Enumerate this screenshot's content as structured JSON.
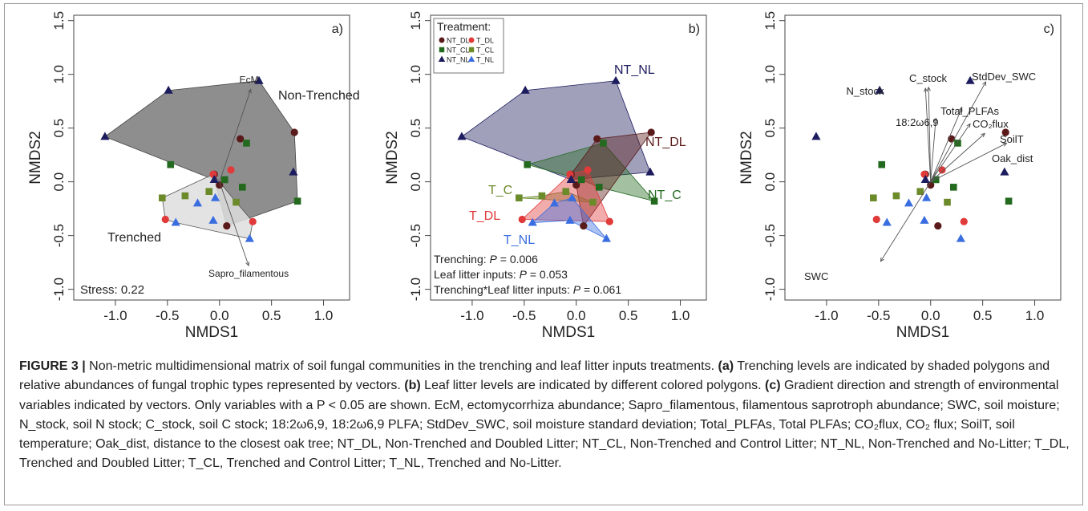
{
  "figure": {
    "caption_label": "FIGURE 3 |",
    "caption_parts": [
      {
        "b": false,
        "t": " Non-metric multidimensional matrix of soil fungal communities in the trenching and leaf litter inputs treatments. "
      },
      {
        "b": true,
        "t": "(a)"
      },
      {
        "b": false,
        "t": " Trenching levels are indicated by shaded polygons and relative abundances of fungal trophic types represented by vectors. "
      },
      {
        "b": true,
        "t": "(b)"
      },
      {
        "b": false,
        "t": " Leaf litter levels are indicated by different colored polygons. "
      },
      {
        "b": true,
        "t": "(c)"
      },
      {
        "b": false,
        "t": " Gradient direction and strength of environmental variables indicated by vectors. Only variables with a P < 0.05 are shown. EcM, ectomycorrhiza abundance; Sapro_filamentous, filamentous saprotroph abundance; SWC, soil moisture; N_stock, soil N stock; C_stock, soil C stock; 18:2ω6,9, 18:2ω6,9 PLFA; StdDev_SWC, soil moisture standard deviation; Total_PLFAs, Total PLFAs; CO₂flux, CO₂ flux; SoilT, soil temperature; Oak_dist, distance to the closest oak tree; NT_DL, Non-Trenched and Doubled Litter; NT_CL, Non-Trenched and Control Litter; NT_NL, Non-Trenched and No-Litter; T_DL, Trenched and Doubled Litter; T_CL, Trenched and Control Litter; T_NL, Trenched and No-Litter."
      }
    ]
  },
  "colors": {
    "NT_DL": "#5a1a1a",
    "T_DL": "#e03a3a",
    "NT_CL": "#236a1f",
    "T_CL": "#6b8a2a",
    "NT_NL": "#1c1c5e",
    "T_NL": "#3a6ee0",
    "nontrenched_fill": "#6e6e6e",
    "trenched_fill": "#dedede"
  },
  "chart_data": [
    {
      "panel": "a)",
      "type": "scatter",
      "xlabel": "NMDS1",
      "ylabel": "NMDS2",
      "xlim": [
        -1.4,
        1.25
      ],
      "ylim": [
        -1.1,
        1.55
      ],
      "xticks": [
        "-1.0",
        "-0.5",
        "0.0",
        "0.5",
        "1.0"
      ],
      "yticks": [
        "-1.0",
        "-0.5",
        "0.0",
        "0.5",
        "1.0",
        "1.5"
      ],
      "groups": [
        "NT_DL",
        "T_DL",
        "NT_CL",
        "T_CL",
        "NT_NL",
        "T_NL"
      ],
      "points": [
        {
          "g": "NT_DL",
          "x": 0.2,
          "y": 0.4
        },
        {
          "g": "NT_DL",
          "x": 0.72,
          "y": 0.46
        },
        {
          "g": "NT_DL",
          "x": 0.0,
          "y": -0.03
        },
        {
          "g": "NT_DL",
          "x": -0.05,
          "y": 0.07
        },
        {
          "g": "NT_DL",
          "x": 0.07,
          "y": -0.41
        },
        {
          "g": "T_DL",
          "x": -0.06,
          "y": 0.07
        },
        {
          "g": "T_DL",
          "x": -0.52,
          "y": -0.35
        },
        {
          "g": "T_DL",
          "x": 0.32,
          "y": -0.37
        },
        {
          "g": "T_DL",
          "x": 0.11,
          "y": 0.11
        },
        {
          "g": "NT_CL",
          "x": 0.26,
          "y": 0.36
        },
        {
          "g": "NT_CL",
          "x": 0.75,
          "y": -0.18
        },
        {
          "g": "NT_CL",
          "x": 0.22,
          "y": -0.05
        },
        {
          "g": "NT_CL",
          "x": 0.05,
          "y": 0.02
        },
        {
          "g": "NT_CL",
          "x": -0.47,
          "y": 0.16
        },
        {
          "g": "T_CL",
          "x": -0.55,
          "y": -0.15
        },
        {
          "g": "T_CL",
          "x": -0.33,
          "y": -0.13
        },
        {
          "g": "T_CL",
          "x": -0.1,
          "y": -0.09
        },
        {
          "g": "T_CL",
          "x": 0.16,
          "y": -0.19
        },
        {
          "g": "NT_NL",
          "x": -1.1,
          "y": 0.42
        },
        {
          "g": "NT_NL",
          "x": -0.49,
          "y": 0.85
        },
        {
          "g": "NT_NL",
          "x": 0.38,
          "y": 0.94
        },
        {
          "g": "NT_NL",
          "x": 0.71,
          "y": 0.09
        },
        {
          "g": "NT_NL",
          "x": -0.05,
          "y": 0.02
        },
        {
          "g": "T_NL",
          "x": -0.42,
          "y": -0.38
        },
        {
          "g": "T_NL",
          "x": -0.21,
          "y": -0.2
        },
        {
          "g": "T_NL",
          "x": -0.06,
          "y": -0.36
        },
        {
          "g": "T_NL",
          "x": 0.29,
          "y": -0.53
        },
        {
          "g": "T_NL",
          "x": -0.04,
          "y": -0.15
        }
      ],
      "hulls": [
        {
          "name": "Non-Trenched",
          "points": [
            [
              -1.1,
              0.42
            ],
            [
              -0.49,
              0.85
            ],
            [
              0.38,
              0.94
            ],
            [
              0.72,
              0.46
            ],
            [
              0.75,
              -0.18
            ],
            [
              0.07,
              -0.41
            ],
            [
              -0.05,
              0.02
            ]
          ]
        },
        {
          "name": "Trenched",
          "points": [
            [
              -0.55,
              -0.15
            ],
            [
              -0.06,
              0.07
            ],
            [
              0.16,
              -0.19
            ],
            [
              0.32,
              -0.37
            ],
            [
              0.29,
              -0.53
            ],
            [
              -0.42,
              -0.38
            ],
            [
              -0.52,
              -0.35
            ]
          ]
        }
      ],
      "vectors": [
        {
          "label": "EcM",
          "x": 0.3,
          "y": 0.86
        },
        {
          "label": "Sapro_filamentous",
          "x": 0.28,
          "y": -0.78
        }
      ],
      "annotations": [
        "Non-Trenched",
        "Trenched",
        "Stress: 0.22"
      ]
    },
    {
      "panel": "b)",
      "type": "scatter",
      "xlabel": "NMDS1",
      "ylabel": "NMDS2",
      "xlim": [
        -1.4,
        1.25
      ],
      "ylim": [
        -1.1,
        1.55
      ],
      "xticks": [
        "-1.0",
        "-0.5",
        "0.0",
        "0.5",
        "1.0"
      ],
      "yticks": [
        "-1.0",
        "-0.5",
        "0.0",
        "0.5",
        "1.0",
        "1.5"
      ],
      "legend_title": "Treatment:",
      "legend_position": "top-left",
      "legend": [
        "NT_DL",
        "T_DL",
        "NT_CL",
        "T_CL",
        "NT_NL",
        "T_NL"
      ],
      "polygon_labels": [
        "NT_NL",
        "NT_DL",
        "NT_C",
        "T_C",
        "T_DL",
        "T_NL"
      ],
      "stats": [
        {
          "label": "Trenching: ",
          "p": "P",
          "value": " = 0.006"
        },
        {
          "label": "Leaf litter inputs: ",
          "p": "P",
          "value": " = 0.053"
        },
        {
          "label": "Trenching*Leaf litter inputs: ",
          "p": "P",
          "value": " = 0.061"
        }
      ]
    },
    {
      "panel": "c)",
      "type": "scatter",
      "xlabel": "NMDS1",
      "ylabel": "NMDS2",
      "xlim": [
        -1.4,
        1.25
      ],
      "ylim": [
        -1.1,
        1.55
      ],
      "xticks": [
        "-1.0",
        "-0.5",
        "0.0",
        "0.5",
        "1.0"
      ],
      "yticks": [
        "-1.0",
        "-0.5",
        "0.0",
        "0.5",
        "1.0",
        "1.5"
      ],
      "vectors": [
        {
          "label": "N_stock",
          "x": -0.05,
          "y": 0.87
        },
        {
          "label": "C_stock",
          "x": -0.02,
          "y": 0.88
        },
        {
          "label": "StdDev_SWC",
          "x": 0.53,
          "y": 0.93
        },
        {
          "label": "Total_PLFAs",
          "x": 0.3,
          "y": 0.69
        },
        {
          "label": "18:2ω6,9",
          "x": 0.05,
          "y": 0.59
        },
        {
          "label": "CO₂flux",
          "x": 0.38,
          "y": 0.54
        },
        {
          "label": "SoilT",
          "x": 0.52,
          "y": 0.45
        },
        {
          "label": "Oak_dist",
          "x": 0.73,
          "y": 0.36
        },
        {
          "label": "SWC",
          "x": -0.48,
          "y": -0.74
        }
      ]
    }
  ]
}
